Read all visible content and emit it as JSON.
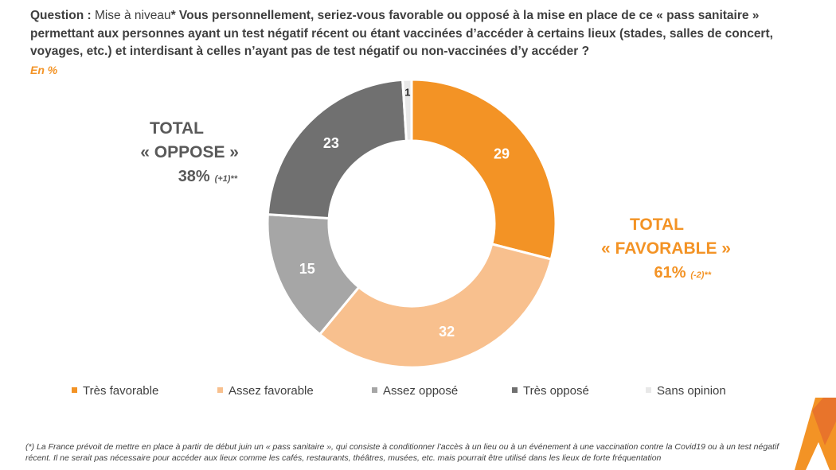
{
  "header": {
    "question_label": "Question :",
    "question_prefix": "Mise à niveau",
    "question_text": "* Vous personnellement, seriez-vous favorable ou opposé à la mise en place de ce « pass sanitaire » permettant aux personnes ayant un test négatif récent ou étant vaccinées d’accéder à certains lieux (stades, salles de concert, voyages, etc.) et interdisant à celles n’ayant pas de test négatif ou non-vaccinées d’y accéder ?",
    "unit": "En %"
  },
  "totals": {
    "oppose": {
      "line1": "TOTAL",
      "line2": "« OPPOSE »",
      "value": "38%",
      "change": "(+1)**"
    },
    "favorable": {
      "line1": "TOTAL",
      "line2": "« FAVORABLE »",
      "value": "61%",
      "change": "(-2)**"
    }
  },
  "colors": {
    "tres_favorable": "#f39325",
    "assez_favorable": "#f8c08e",
    "assez_oppose": "#a6a6a6",
    "tres_oppose": "#707070",
    "sans_opinion": "#e8e8e8"
  },
  "chart_data": {
    "type": "pie",
    "variant": "donut",
    "unit": "%",
    "categories": [
      "Très favorable",
      "Assez favorable",
      "Assez opposé",
      "Très opposé",
      "Sans opinion"
    ],
    "values": [
      29,
      32,
      15,
      23,
      1
    ],
    "data_labels": [
      "29",
      "32",
      "15",
      "23",
      "1"
    ],
    "start": "12 o'clock, clockwise",
    "legend_position": "bottom"
  },
  "footnote": "(*) La France prévoit de mettre en place à partir de début juin un « pass sanitaire », qui consiste à conditionner l’accès à un lieu ou à un événement à une vaccination contre la Covid19 ou à un test négatif récent. Il ne serait pas nécessaire pour accéder aux lieux comme les cafés, restaurants, théâtres, musées, etc. mais pourrait être utilisé dans les lieux de forte fréquentation"
}
